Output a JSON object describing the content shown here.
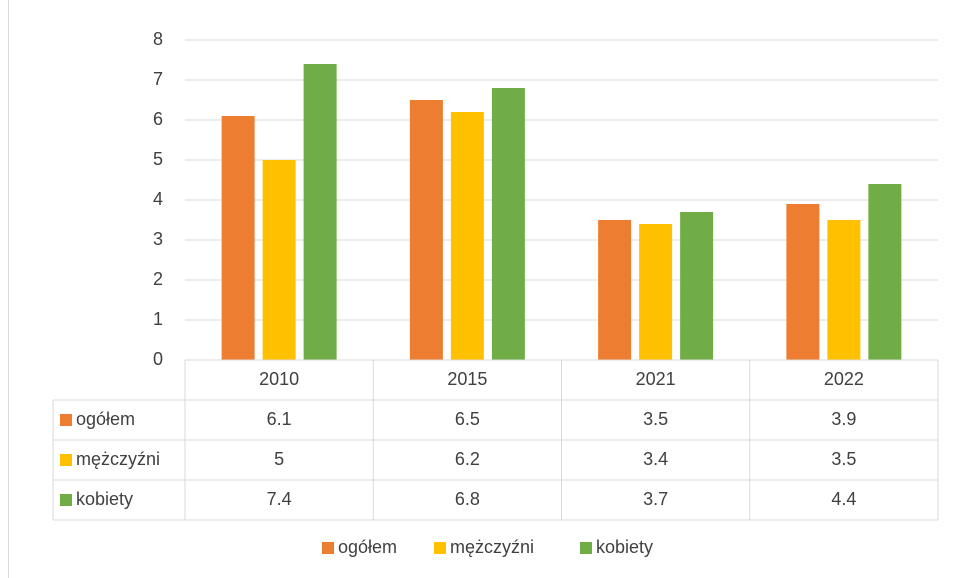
{
  "chart_data": {
    "type": "bar",
    "categories": [
      "2010",
      "2015",
      "2021",
      "2022"
    ],
    "series": [
      {
        "name": "ogółem",
        "color": "#ed7d31",
        "values": [
          6.1,
          6.5,
          3.5,
          3.9
        ]
      },
      {
        "name": "mężczyźni",
        "color": "#ffc000",
        "values": [
          5,
          6.2,
          3.4,
          3.5
        ]
      },
      {
        "name": "kobiety",
        "color": "#70ad47",
        "values": [
          7.4,
          6.8,
          3.7,
          4.4
        ]
      }
    ],
    "ylim": [
      0,
      8
    ],
    "yticks": [
      0,
      1,
      2,
      3,
      4,
      5,
      6,
      7,
      8
    ],
    "grid": true,
    "legend": "bottom",
    "data_table": true
  }
}
